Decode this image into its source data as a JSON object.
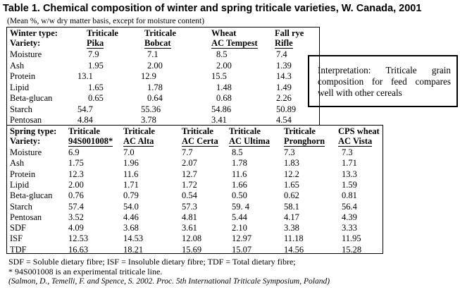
{
  "title": "Table 1.  Chemical composition of winter and spring triticale varieties, W. Canada, 2001",
  "subtitle": "(Mean %, w/w dry matter basis, except for moisture content)",
  "winter": {
    "type_label": "Winter type:",
    "variety_label": "Variety:",
    "columns": [
      {
        "line1": "Triticale",
        "line2": "Pika"
      },
      {
        "line1": "Triticale",
        "line2": "Bobcat"
      },
      {
        "line1": "Wheat",
        "line2": "AC Tempest"
      },
      {
        "line1": "Fall rye",
        "line2": "Rifle"
      }
    ],
    "rows": [
      {
        "label": "Moisture",
        "values": [
          "7.9",
          "7.1",
          "8.5",
          "7.4"
        ]
      },
      {
        "label": "Ash",
        "values": [
          "1.95",
          "2.00",
          "2.00",
          "1.39"
        ]
      },
      {
        "label": "Protein",
        "values": [
          "13.1",
          "12.9",
          "15.5",
          "14.3"
        ]
      },
      {
        "label": "Lipid",
        "values": [
          "1.65",
          "1.78",
          "1.48",
          "1.49"
        ]
      },
      {
        "label": "Beta-glucan",
        "values": [
          "0.65",
          "0.64",
          "0.68",
          "2.26"
        ]
      },
      {
        "label": "Starch",
        "values": [
          "54.7",
          "55.36",
          "54.86",
          "50.89"
        ]
      },
      {
        "label": "Pentosan",
        "values": [
          "4.84",
          "3.78",
          "3.41",
          "4.54"
        ]
      }
    ]
  },
  "spring": {
    "type_label": "Spring type:",
    "variety_label": "Variety:",
    "columns": [
      {
        "line1": "Triticale",
        "line2": "94S001008*"
      },
      {
        "line1": "Triticale",
        "line2": "AC Alta"
      },
      {
        "line1": "Triticale",
        "line2": "AC Certa"
      },
      {
        "line1": "Triticale",
        "line2": "AC Ultima"
      },
      {
        "line1": "Triticale",
        "line2": "Pronghorn"
      },
      {
        "line1": "CPS wheat",
        "line2": "AC Vista"
      }
    ],
    "rows": [
      {
        "label": "Moisture",
        "values": [
          "6.9",
          "7.0",
          "7.7",
          "8.5",
          "7.3",
          "7.3"
        ]
      },
      {
        "label": "Ash",
        "values": [
          "1.75",
          "1.96",
          "2.07",
          "1.78",
          "1.83",
          "1.71"
        ]
      },
      {
        "label": "Protein",
        "values": [
          "12.3",
          "11.6",
          "12.7",
          "11.6",
          "12.2",
          "13.3"
        ]
      },
      {
        "label": "Lipid",
        "values": [
          "2.00",
          "1.71",
          "1.72",
          "1.66",
          "1.65",
          "1.59"
        ]
      },
      {
        "label": "Beta-glucan",
        "values": [
          "0.76",
          "0.79",
          "0.54",
          "0.50",
          "0.62",
          "0.81"
        ]
      },
      {
        "label": "Starch",
        "values": [
          "57.4",
          "54.0",
          "57.3",
          "59. 4",
          "58.1",
          "56.4"
        ]
      },
      {
        "label": "Pentosan",
        "values": [
          "3.52",
          "4.46",
          "4.81",
          "5.44",
          "4.17",
          "4.39"
        ]
      },
      {
        "label": "SDF",
        "values": [
          "4.09",
          "3.68",
          "3.61",
          "2.10",
          "3.38",
          "3.33"
        ]
      },
      {
        "label": "ISF",
        "values": [
          "12.53",
          "14.53",
          "12.08",
          "12.97",
          "11.18",
          "11.95"
        ]
      },
      {
        "label": "TDF",
        "values": [
          "16.63",
          "18.21",
          "15.69",
          "15.07",
          "14.56",
          "15.28"
        ]
      }
    ]
  },
  "interpretation": "Interpretation:  Triticale grain composition for feed compares well with other cereals",
  "footnotes": {
    "fibre": "SDF = Soluble dietary fibre;  ISF = Insoluble dietary fibre; TDF = Total dietary fibre;",
    "experimental": "* 94S001008 is an experimental triticale line.",
    "citation": "(Salmon, D., Temelli, F. and Spence, S. 2002. Proc. 5th International Triticale Symposium, Poland)"
  }
}
